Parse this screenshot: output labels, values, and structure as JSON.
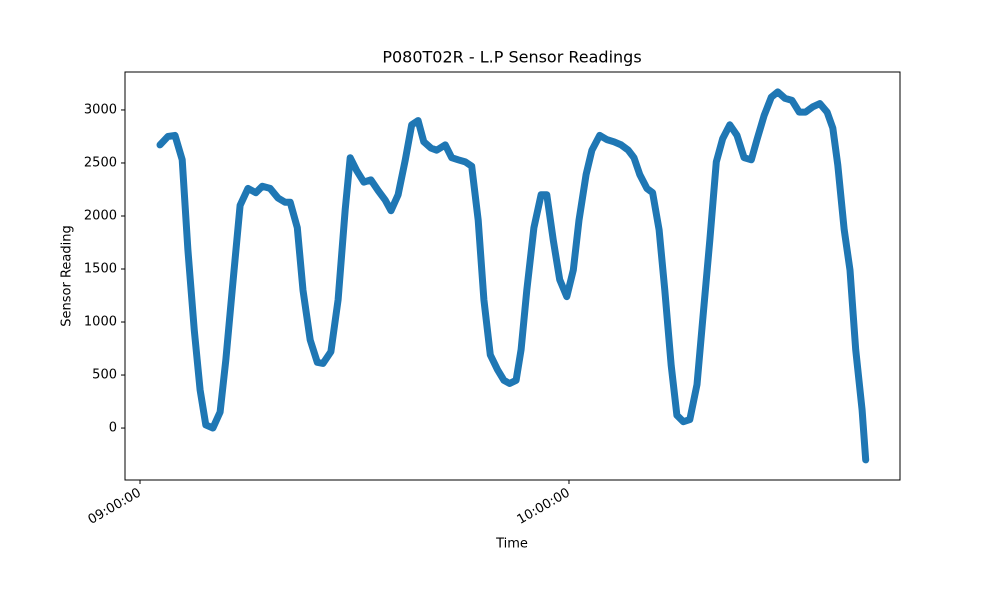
{
  "chart_data": {
    "type": "line",
    "title": "P080T02R - L.P Sensor Readings",
    "xlabel": "Time",
    "ylabel": "Sensor Reading",
    "x": [
      "09:02:48",
      "09:03:54",
      "09:04:54",
      "09:05:54",
      "09:06:42",
      "09:07:36",
      "09:08:24",
      "09:09:12",
      "09:10:12",
      "09:11:12",
      "09:12:00",
      "09:12:54",
      "09:14:00",
      "09:15:06",
      "09:16:12",
      "09:17:06",
      "09:18:12",
      "09:19:18",
      "09:20:18",
      "09:21:00",
      "09:22:00",
      "09:22:48",
      "09:23:48",
      "09:24:48",
      "09:25:36",
      "09:26:42",
      "09:27:42",
      "09:28:42",
      "09:29:24",
      "09:30:18",
      "09:31:18",
      "09:32:18",
      "09:33:18",
      "09:34:18",
      "09:35:06",
      "09:36:06",
      "09:37:06",
      "09:38:00",
      "09:38:54",
      "09:39:42",
      "09:40:42",
      "09:41:30",
      "09:42:42",
      "09:43:36",
      "09:44:30",
      "09:45:30",
      "09:46:24",
      "09:47:18",
      "09:48:06",
      "09:49:00",
      "09:50:00",
      "09:50:54",
      "09:51:42",
      "09:52:36",
      "09:53:18",
      "09:54:06",
      "09:55:06",
      "09:56:06",
      "09:56:54",
      "09:57:48",
      "09:58:42",
      "09:59:42",
      "10:00:36",
      "10:01:24",
      "10:02:24",
      "10:03:12",
      "10:04:18",
      "10:05:18",
      "10:06:18",
      "10:07:18",
      "10:08:18",
      "10:09:06",
      "10:09:54",
      "10:10:54",
      "10:11:42",
      "10:12:36",
      "10:13:24",
      "10:14:18",
      "10:15:06",
      "10:16:00",
      "10:16:54",
      "10:17:54",
      "10:18:42",
      "10:19:42",
      "10:20:36",
      "10:21:30",
      "10:22:30",
      "10:23:30",
      "10:24:30",
      "10:25:30",
      "10:26:18",
      "10:27:18",
      "10:28:18",
      "10:29:12",
      "10:30:12",
      "10:31:12",
      "10:32:12",
      "10:33:06",
      "10:34:06",
      "10:35:06",
      "10:36:06",
      "10:36:54",
      "10:37:36",
      "10:38:30",
      "10:39:18",
      "10:40:06",
      "10:41:00",
      "10:41:30"
    ],
    "series": [
      {
        "name": "L.P",
        "color": "#1f77b4",
        "values": [
          2670,
          2750,
          2760,
          2530,
          1680,
          920,
          360,
          30,
          0,
          150,
          640,
          1300,
          2100,
          2260,
          2220,
          2280,
          2260,
          2170,
          2130,
          2130,
          1890,
          1300,
          830,
          620,
          610,
          720,
          1210,
          2060,
          2550,
          2430,
          2320,
          2340,
          2240,
          2150,
          2050,
          2200,
          2530,
          2860,
          2900,
          2700,
          2640,
          2620,
          2670,
          2550,
          2530,
          2510,
          2470,
          1960,
          1210,
          690,
          550,
          450,
          420,
          450,
          740,
          1300,
          1890,
          2200,
          2200,
          1770,
          1400,
          1240,
          1490,
          1960,
          2390,
          2620,
          2760,
          2720,
          2700,
          2670,
          2620,
          2550,
          2390,
          2260,
          2220,
          1870,
          1300,
          590,
          120,
          60,
          80,
          410,
          1020,
          1770,
          2510,
          2730,
          2860,
          2760,
          2550,
          2530,
          2720,
          2950,
          3120,
          3170,
          3110,
          3090,
          2980,
          2980,
          3030,
          3060,
          2980,
          2830,
          2480,
          1870,
          1490,
          740,
          170,
          -300
        ]
      }
    ],
    "xlim": [
      "08:57:54",
      "10:46:18"
    ],
    "xticks": [
      "09:00:00",
      "10:00:00"
    ],
    "ylim": [
      -490,
      3358
    ],
    "yticks": [
      0,
      500,
      1000,
      1500,
      2000,
      2500,
      3000
    ]
  }
}
